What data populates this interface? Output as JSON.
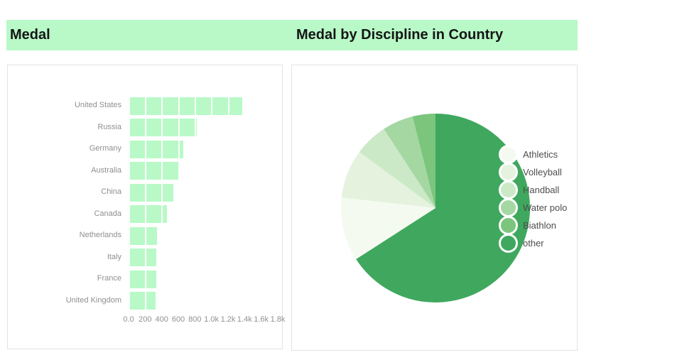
{
  "header": {
    "left_title": "Medal",
    "right_title": "Medal by Discipline in Country",
    "background_color": "#b8f9c7"
  },
  "colors": {
    "bar_fill": "#b8f9c7",
    "panel_border": "#e3e3e3",
    "gridline": "#e9e9e9",
    "axis_text": "#8f8f8f",
    "legend_text": "#4d4d4d",
    "pie_main": "#3fa85e"
  },
  "chart_data": [
    {
      "type": "bar",
      "title": "Medal",
      "orientation": "horizontal",
      "categories": [
        "United States",
        "Russia",
        "Germany",
        "Australia",
        "China",
        "Canada",
        "Netherlands",
        "Italy",
        "France",
        "United Kingdom"
      ],
      "values": [
        1370,
        820,
        660,
        600,
        540,
        460,
        340,
        335,
        330,
        325
      ],
      "xlabel": "",
      "ylabel": "",
      "xlim": [
        0,
        1800
      ],
      "x_ticks": [
        "0.0",
        "200",
        "400",
        "600",
        "800",
        "1.0k",
        "1.2k",
        "1.4k",
        "1.6k",
        "1.8k"
      ],
      "x_tick_values": [
        0,
        200,
        400,
        600,
        800,
        1000,
        1200,
        1400,
        1600,
        1800
      ],
      "grid": true,
      "bar_color": "#b8f9c7"
    },
    {
      "type": "pie",
      "title": "Medal by Discipline in Country",
      "slices_clockwise_from_top": [
        {
          "label": "other",
          "percent": 65.9,
          "color": "#3fa85e"
        },
        {
          "label": "Athletics",
          "percent": 10.9,
          "color": "#f4faf0"
        },
        {
          "label": "Volleyball",
          "percent": 8.3,
          "color": "#e4f2de"
        },
        {
          "label": "Handball",
          "percent": 5.7,
          "color": "#cbe9c6"
        },
        {
          "label": "Water polo",
          "percent": 5.3,
          "color": "#a5d7a2"
        },
        {
          "label": "Biathlon",
          "percent": 3.9,
          "color": "#7bc57c"
        }
      ],
      "legend": [
        "Athletics",
        "Volleyball",
        "Handball",
        "Water polo",
        "Biathlon",
        "other"
      ],
      "legend_position": "right-overlay"
    }
  ]
}
